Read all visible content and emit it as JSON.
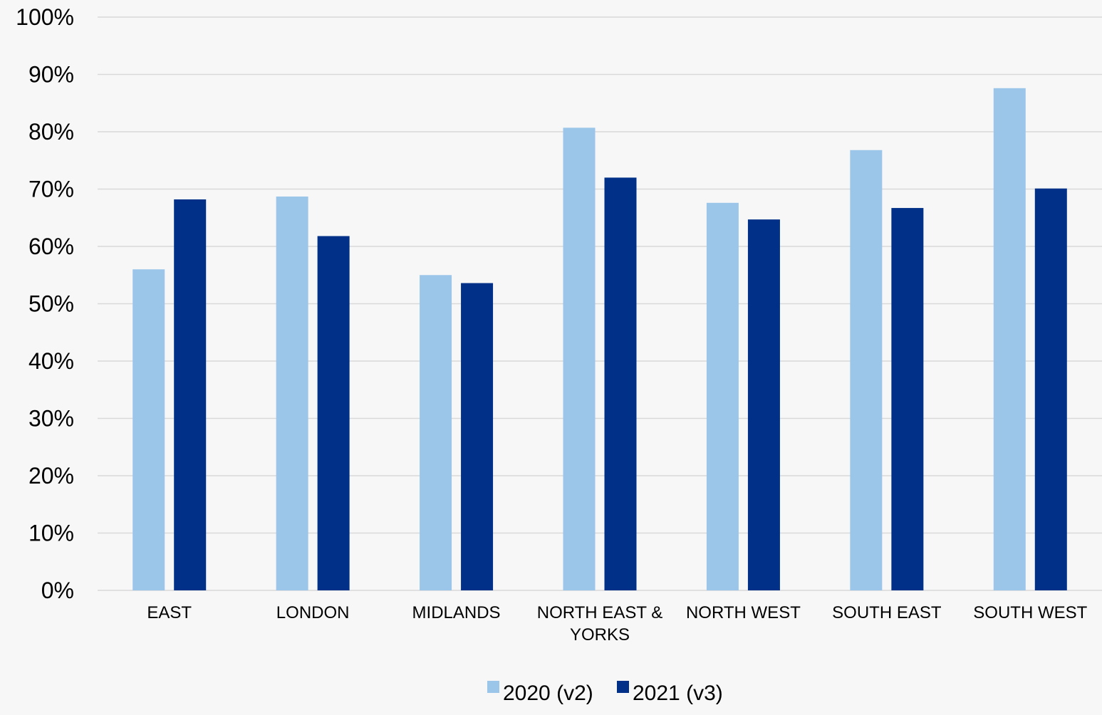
{
  "chart_data": {
    "type": "bar",
    "title": "",
    "xlabel": "",
    "ylabel": "",
    "ylim": [
      0,
      100
    ],
    "y_ticks": [
      "0%",
      "10%",
      "20%",
      "30%",
      "40%",
      "50%",
      "60%",
      "70%",
      "80%",
      "90%",
      "100%"
    ],
    "grid": true,
    "legend_position": "bottom",
    "categories": [
      [
        "EAST"
      ],
      [
        "LONDON"
      ],
      [
        "MIDLANDS"
      ],
      [
        "NORTH EAST &",
        "YORKS"
      ],
      [
        "NORTH WEST"
      ],
      [
        "SOUTH EAST"
      ],
      [
        "SOUTH WEST"
      ]
    ],
    "series": [
      {
        "name": "2020 (v2)",
        "color": "#9bc6ea",
        "values": [
          56,
          68.7,
          55,
          80.7,
          67.6,
          76.8,
          87.6
        ]
      },
      {
        "name": "2021 (v3)",
        "color": "#003087",
        "values": [
          68.2,
          61.8,
          53.6,
          72,
          64.7,
          66.7,
          70.1
        ]
      }
    ]
  }
}
